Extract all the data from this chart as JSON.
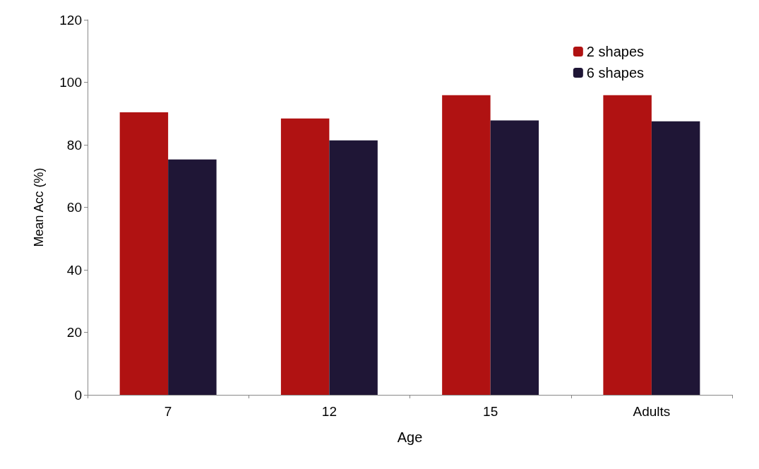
{
  "chart_data": {
    "type": "bar",
    "xlabel": "Age",
    "ylabel": "Mean Acc (%)",
    "categories": [
      "7",
      "12",
      "15",
      "Adults"
    ],
    "series": [
      {
        "name": "2 shapes",
        "color": "#b01212",
        "values": [
          90.4,
          88.4,
          95.9,
          95.9
        ]
      },
      {
        "name": "6 shapes",
        "color": "#1f1636",
        "values": [
          75.3,
          81.4,
          87.8,
          87.5
        ]
      }
    ],
    "ylim": [
      0,
      120
    ],
    "yticks": [
      0,
      20,
      40,
      60,
      80,
      100,
      120
    ],
    "grid": false,
    "legend": "top right"
  }
}
